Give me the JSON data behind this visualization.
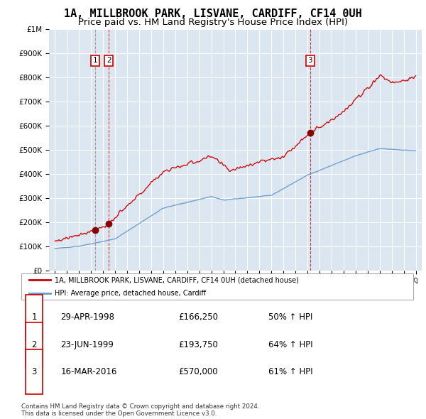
{
  "title": "1A, MILLBROOK PARK, LISVANE, CARDIFF, CF14 0UH",
  "subtitle": "Price paid vs. HM Land Registry's House Price Index (HPI)",
  "yticks": [
    0,
    100000,
    200000,
    300000,
    400000,
    500000,
    600000,
    700000,
    800000,
    900000,
    1000000
  ],
  "house_color": "#cc0000",
  "hpi_color": "#6699cc",
  "transaction_years": [
    1998.33,
    1999.47,
    2016.21
  ],
  "transaction_prices": [
    166250,
    193750,
    570000
  ],
  "transaction_labels": [
    "1",
    "2",
    "3"
  ],
  "table_rows": [
    [
      "1",
      "29-APR-1998",
      "£166,250",
      "50% ↑ HPI"
    ],
    [
      "2",
      "23-JUN-1999",
      "£193,750",
      "64% ↑ HPI"
    ],
    [
      "3",
      "16-MAR-2016",
      "£570,000",
      "61% ↑ HPI"
    ]
  ],
  "legend_house": "1A, MILLBROOK PARK, LISVANE, CARDIFF, CF14 0UH (detached house)",
  "legend_hpi": "HPI: Average price, detached house, Cardiff",
  "footnote": "Contains HM Land Registry data © Crown copyright and database right 2024.\nThis data is licensed under the Open Government Licence v3.0.",
  "background_color": "#ffffff",
  "chart_bg": "#dce6f1",
  "grid_color": "#ffffff",
  "title_fontsize": 11,
  "subtitle_fontsize": 9.5
}
